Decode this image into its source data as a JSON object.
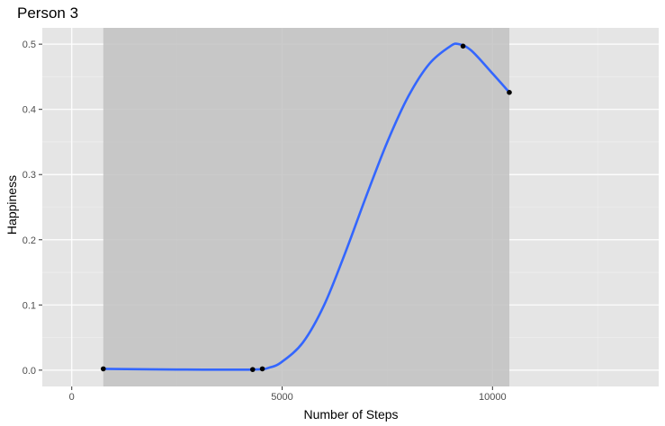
{
  "chart_data": {
    "type": "scatter",
    "title": "Person 3",
    "xlabel": "Number of Steps",
    "ylabel": "Happiness",
    "xlim": [
      -700,
      13950
    ],
    "ylim": [
      -0.025,
      0.525
    ],
    "x_ticks": [
      0,
      5000,
      10000
    ],
    "x_tick_labels": [
      "0",
      "5000",
      "10000"
    ],
    "y_ticks": [
      0.0,
      0.1,
      0.2,
      0.3,
      0.4,
      0.5
    ],
    "y_tick_labels": [
      "0.0",
      "0.1",
      "0.2",
      "0.3",
      "0.4",
      "0.5"
    ],
    "x_minor_ticks": [
      2500,
      7500,
      12500
    ],
    "y_minor_ticks": [
      0.05,
      0.15,
      0.25,
      0.35,
      0.45
    ],
    "grid": true,
    "shaded_band": {
      "x_start": 750,
      "x_end": 10400
    },
    "points": [
      {
        "x": 750,
        "y": 0.002
      },
      {
        "x": 4300,
        "y": 0.001
      },
      {
        "x": 4530,
        "y": 0.002
      },
      {
        "x": 9300,
        "y": 0.497
      },
      {
        "x": 10400,
        "y": 0.426
      }
    ],
    "smooth_line": [
      {
        "x": 750,
        "y": 0.002
      },
      {
        "x": 2500,
        "y": 0.001
      },
      {
        "x": 4300,
        "y": 0.001
      },
      {
        "x": 4700,
        "y": 0.004
      },
      {
        "x": 5000,
        "y": 0.013
      },
      {
        "x": 5500,
        "y": 0.043
      },
      {
        "x": 6000,
        "y": 0.1
      },
      {
        "x": 6500,
        "y": 0.18
      },
      {
        "x": 7000,
        "y": 0.267
      },
      {
        "x": 7500,
        "y": 0.35
      },
      {
        "x": 8000,
        "y": 0.42
      },
      {
        "x": 8500,
        "y": 0.47
      },
      {
        "x": 9000,
        "y": 0.497
      },
      {
        "x": 9200,
        "y": 0.5
      },
      {
        "x": 9500,
        "y": 0.49
      },
      {
        "x": 10000,
        "y": 0.455
      },
      {
        "x": 10400,
        "y": 0.426
      }
    ],
    "colors": {
      "panel_background": "#e5e5e5",
      "shaded_band": "#c2c2c2",
      "grid_major": "#ffffff",
      "grid_minor": "#f0f0f0",
      "line": "#3366ff",
      "points": "#000000"
    }
  }
}
